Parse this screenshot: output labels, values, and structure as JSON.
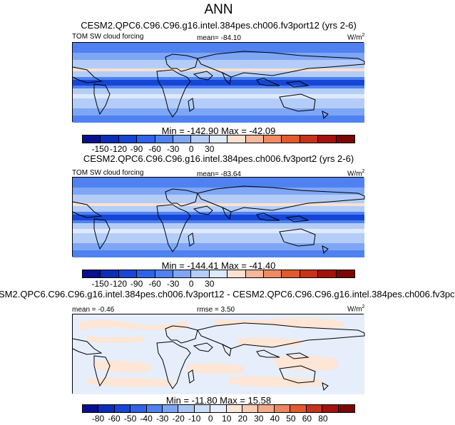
{
  "title": "ANN",
  "panels": [
    {
      "title": "CESM2.QPC6.C96.C96.g16.intel.384pes.ch006.fv3port12 (yrs 2-6)",
      "label_left": "TOM SW cloud forcing",
      "label_mid": "mean= -84.10",
      "units": "W/m",
      "units_sup": "2",
      "minmax": "Min = -142.90 Max = -42.09",
      "ticks": [
        "-150",
        "-120",
        "-90",
        "-60",
        "-30",
        "0",
        "30"
      ]
    },
    {
      "title": "CESM2.QPC6.C96.C96.g16.intel.384pes.ch006.fv3port2 (yrs 2-6)",
      "label_left": "TOM SW cloud forcing",
      "label_mid": "mean= -83.64",
      "units": "W/m",
      "units_sup": "2",
      "minmax": "Min = -144.41 Max = -41.40",
      "ticks": [
        "-150",
        "-120",
        "-90",
        "-60",
        "-30",
        "0",
        "30"
      ]
    },
    {
      "title": "SM2.QPC6.C96.C96.g16.intel.384pes.ch006.fv3port12 - CESM2.QPC6.C96.C96.g16.intel.384pes.ch006.fv3pc",
      "label_left": "mean =  -0.46",
      "label_mid": "rmse =   3.50",
      "units": "W/m",
      "units_sup": "2",
      "minmax": "Min = -11.80 Max =  15.58",
      "ticks": [
        "-80",
        "-60",
        "-50",
        "-40",
        "-30",
        "-20",
        "-10",
        "0",
        "10",
        "20",
        "30",
        "40",
        "50",
        "60",
        "80"
      ]
    }
  ],
  "colors": {
    "abs_scale": [
      "#08108f",
      "#0c2db8",
      "#1646d6",
      "#2f63e8",
      "#4f82f0",
      "#7ea6f5",
      "#b3cdf8",
      "#dfe9fb",
      "#fde0cf",
      "#f7b79b",
      "#ef8a62",
      "#e05a2c",
      "#c8321a",
      "#a4120e",
      "#7a0606"
    ],
    "diff_scale": [
      "#08108f",
      "#0c2db8",
      "#1646d6",
      "#2f63e8",
      "#4f82f0",
      "#7ea6f5",
      "#a9c4f6",
      "#cddcf9",
      "#e6eefc",
      "#fde6d6",
      "#f9ccb4",
      "#f4aa89",
      "#ec8561",
      "#e05a2c",
      "#c8321a",
      "#a4120e",
      "#7a0606"
    ]
  }
}
